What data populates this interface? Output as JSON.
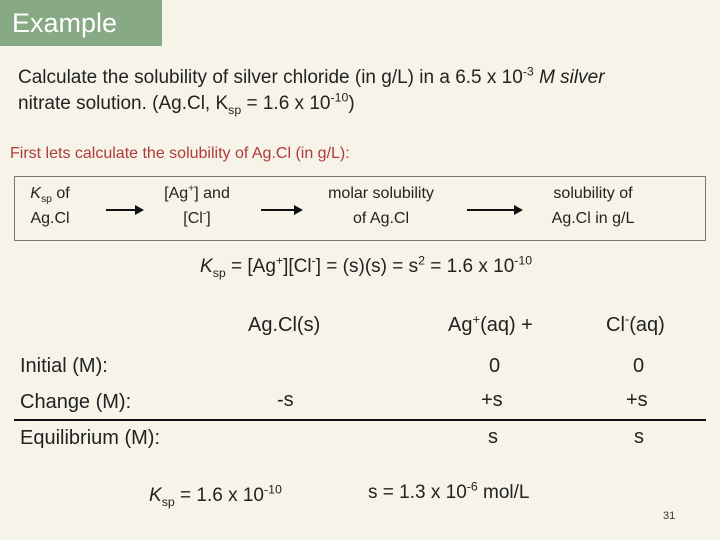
{
  "header": {
    "title": "Example"
  },
  "problem": {
    "line1": "Calculate the solubility of silver chloride (in g/L) in a 6.5 x 10",
    "line1_exp": "-3",
    "line1_end": " M silver",
    "line2": "nitrate solution. (Ag.Cl, K",
    "line2_sub": "sp",
    "line2_mid": " = 1.6 x 10",
    "line2_exp": "-10",
    "line2_end": ")"
  },
  "first_step": "First lets calculate the solubility of Ag.Cl (in g/L):",
  "flow": {
    "step1": {
      "a": "K",
      "a_sub": "sp",
      "a_end": " of",
      "b": "Ag.Cl"
    },
    "step2": {
      "a": "[Ag",
      "a_sup": "+",
      "a_end": "] and",
      "b": "[Cl",
      "b_sup": "-",
      "b_end": "]"
    },
    "step3": {
      "a": "molar solubility",
      "b": "of Ag.Cl"
    },
    "step4": {
      "a": "solubility of",
      "b": "Ag.Cl in g/L"
    }
  },
  "ksp_expr": {
    "k": "K",
    "k_sub": "sp",
    "part1": " = [Ag",
    "sup1": "+",
    "part2": "][Cl",
    "sup2": "-",
    "part3": "] = (s)(s) = s",
    "sup3": "2",
    "part4": " = 1.6 x 10",
    "sup4": "-10"
  },
  "reaction": {
    "reactant": "Ag.Cl(s)",
    "product1": "Ag+(aq)  +",
    "product1_base": "Ag",
    "product1_sup": "+",
    "product1_end": "(aq)  +",
    "product2_base": "Cl",
    "product2_sup": "-",
    "product2_end": "(aq)"
  },
  "ice": {
    "initial_label": "Initial (M):",
    "change_label": "Change (M):",
    "equilibrium_label": "Equilibrium (M):",
    "initial": [
      "0",
      "0"
    ],
    "change_reactant": "-s",
    "change": [
      "+s",
      "+s"
    ],
    "equilibrium": [
      "s",
      "s"
    ]
  },
  "bottom": {
    "ksp_k": "K",
    "ksp_sub": "sp",
    "ksp_mid": " = 1.6 x 10",
    "ksp_exp": "-10",
    "s_base": "s = 1.3 x 10",
    "s_exp": "-6",
    "s_end": " mol/L"
  },
  "page_number": "31"
}
